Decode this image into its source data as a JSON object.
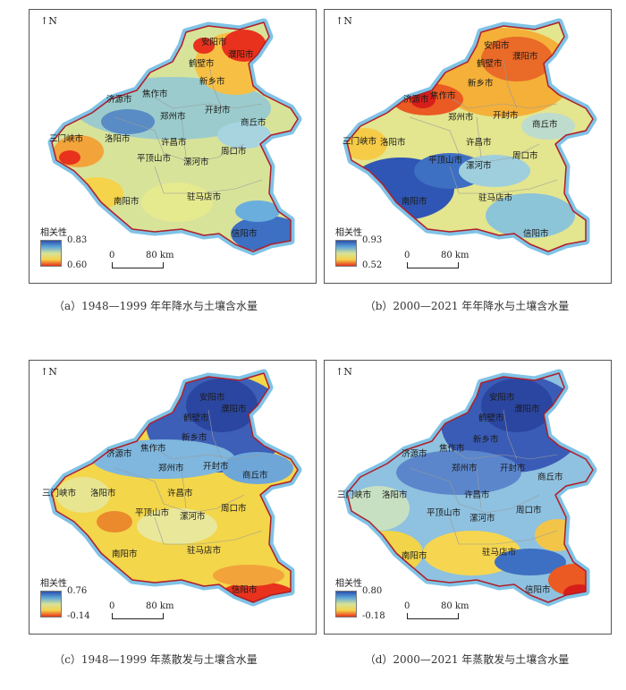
{
  "ui": {
    "north_label": "N",
    "legend_title": "相关性",
    "scale_zero": "0",
    "scale_end": "80 km"
  },
  "colors": {
    "high": "#2b4fae",
    "mid_high": "#5fa8d8",
    "mid": "#d6e29a",
    "mid_low": "#f5d34a",
    "low": "#e8321d",
    "province_border": "#b01e28",
    "halo": "#7fc3e6",
    "city_border": "#9a9a9a"
  },
  "cities": [
    "安阳市",
    "鹤壁市",
    "濮阳市",
    "新乡市",
    "焦作市",
    "济源市",
    "郑州市",
    "开封市",
    "商丘市",
    "三门峡市",
    "洛阳市",
    "许昌市",
    "周口市",
    "平顶山市",
    "漯河市",
    "南阳市",
    "驻马店市",
    "信阳市"
  ],
  "panels": [
    {
      "id": "a",
      "legend_max": "0.83",
      "legend_min": "0.60",
      "caption": "（a）1948—1999 年年降水与土壤含水量"
    },
    {
      "id": "b",
      "legend_max": "0.93",
      "legend_min": "0.52",
      "caption": "（b）2000—2021 年年降水与土壤含水量"
    },
    {
      "id": "c",
      "legend_max": "0.76",
      "legend_min": "-0.14",
      "caption": "（c）1948—1999 年蒸散发与土壤含水量"
    },
    {
      "id": "d",
      "legend_max": "0.80",
      "legend_min": "-0.18",
      "caption": "（d）2000—2021 年蒸散发与土壤含水量"
    }
  ]
}
